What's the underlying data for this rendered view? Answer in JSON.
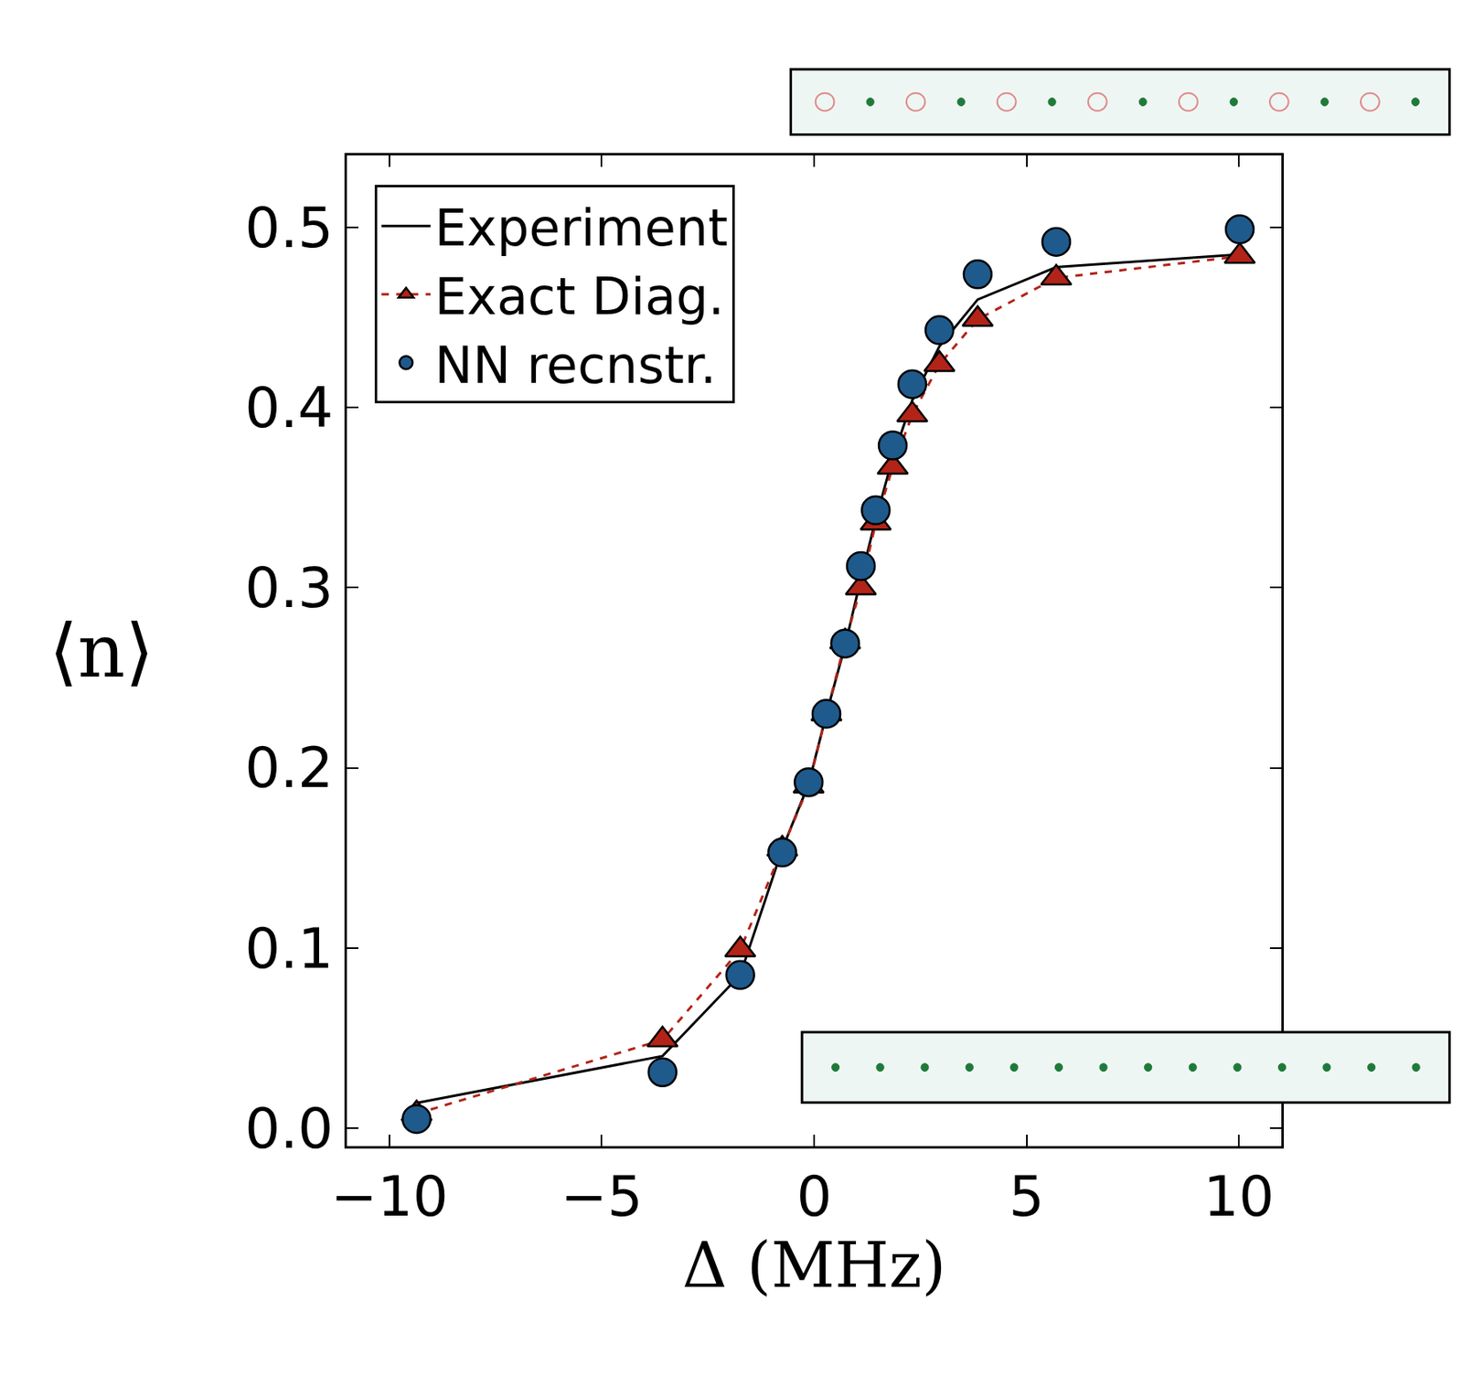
{
  "chart_data": {
    "type": "line",
    "x_label": "Δ (MHz)",
    "y_label": "⟨n⟩",
    "x": [
      -9.36,
      -3.57,
      -1.74,
      -0.75,
      -0.13,
      0.29,
      0.73,
      1.1,
      1.45,
      1.85,
      2.31,
      2.95,
      3.85,
      5.7,
      10.02
    ],
    "series": [
      {
        "name": "Experiment",
        "color": "#000000",
        "marker": "none",
        "line_style": "solid",
        "values": [
          0.014,
          0.04,
          0.085,
          0.155,
          0.191,
          0.23,
          0.268,
          0.305,
          0.338,
          0.372,
          0.404,
          0.434,
          0.46,
          0.478,
          0.485
        ]
      },
      {
        "name": "Exact Diag.",
        "color": "#b22418",
        "marker": "triangle-up",
        "line_style": "dashed",
        "values": [
          0.008,
          0.049,
          0.099,
          0.155,
          0.19,
          0.23,
          0.27,
          0.3,
          0.336,
          0.367,
          0.396,
          0.424,
          0.449,
          0.472,
          0.484
        ]
      },
      {
        "name": "NN recnstr.",
        "color": "#1f5a8c",
        "marker": "circle",
        "line_style": "none",
        "values": [
          0.005,
          0.031,
          0.085,
          0.153,
          0.192,
          0.23,
          0.269,
          0.312,
          0.343,
          0.379,
          0.413,
          0.443,
          0.474,
          0.492,
          0.499
        ]
      }
    ],
    "xlim": [
      -11,
      11
    ],
    "ylim": [
      -0.01,
      0.54
    ],
    "xticks": [
      {
        "value": -10,
        "label": "−10"
      },
      {
        "value": -5,
        "label": "−5"
      },
      0,
      5,
      10
    ],
    "yticks": [
      {
        "value": 0,
        "label": "0.0"
      },
      0.1,
      0.2,
      0.3,
      0.4,
      0.5
    ],
    "legend": "upper left",
    "grid": false
  }
}
